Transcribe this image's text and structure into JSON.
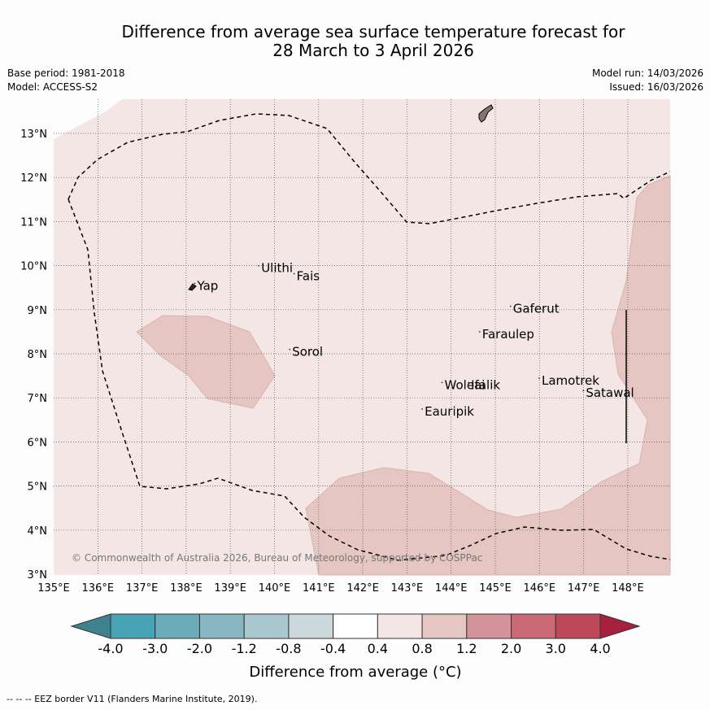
{
  "title": {
    "line1": "Difference from average sea surface temperature forecast for",
    "line2": "28 March to 3 April 2026"
  },
  "meta": {
    "base_period": "Base period: 1981-2018",
    "model": "Model: ACCESS-S2",
    "model_run": "Model run: 14/03/2026",
    "issued": "Issued: 16/03/2026"
  },
  "map": {
    "lon_range": [
      135,
      149
    ],
    "lat_range": [
      3,
      13.8
    ],
    "lon_ticks": [
      "135°E",
      "136°E",
      "137°E",
      "138°E",
      "139°E",
      "140°E",
      "141°E",
      "142°E",
      "143°E",
      "144°E",
      "145°E",
      "146°E",
      "147°E",
      "148°E"
    ],
    "lat_ticks": [
      "3°N",
      "4°N",
      "5°N",
      "6°N",
      "7°N",
      "8°N",
      "9°N",
      "10°N",
      "11°N",
      "12°N",
      "13°N"
    ],
    "places": [
      {
        "name": "Yap",
        "lon": 138.25,
        "lat": 9.45
      },
      {
        "name": "Ulithi",
        "lon": 139.7,
        "lat": 9.85
      },
      {
        "name": "Fais",
        "lon": 140.5,
        "lat": 9.67
      },
      {
        "name": "Gaferut",
        "lon": 145.4,
        "lat": 8.93
      },
      {
        "name": "Faraulep",
        "lon": 144.7,
        "lat": 8.35
      },
      {
        "name": "Sorol",
        "lon": 140.4,
        "lat": 7.95
      },
      {
        "name": "Lamotrek",
        "lon": 146.05,
        "lat": 7.3
      },
      {
        "name": "Woleai",
        "lon": 143.85,
        "lat": 7.2
      },
      {
        "name": "Ifalik",
        "lon": 144.45,
        "lat": 7.2
      },
      {
        "name": "Satawal",
        "lon": 147.05,
        "lat": 7.02
      },
      {
        "name": "Eauripik",
        "lon": 143.4,
        "lat": 6.6
      }
    ],
    "copyright": "© Commonwealth of Australia 2026, Bureau of Meteorology, supported by COSPPac",
    "fill_colors": {
      "band_0_4_0_8": "#f3e6e5",
      "band_0_8_1_2": "#e5c6c2",
      "land": "#8a7272"
    }
  },
  "colorbar": {
    "labels": [
      "-4.0",
      "-3.0",
      "-2.0",
      "-1.2",
      "-0.8",
      "-0.4",
      "0.4",
      "0.8",
      "1.2",
      "2.0",
      "3.0",
      "4.0"
    ],
    "colors": [
      "#48a4b4",
      "#6aacba",
      "#88b6c2",
      "#a9c9cf",
      "#cbd8dc",
      "#ffffff",
      "#f3e6e5",
      "#e5c6c2",
      "#d4929a",
      "#c96a74",
      "#bd4858"
    ],
    "low_color": "#3e8290",
    "high_color": "#a7203c",
    "label": "Difference from average (°C)"
  },
  "footer": "--  --  -- EEZ border V11 (Flanders Marine Institute, 2019)."
}
